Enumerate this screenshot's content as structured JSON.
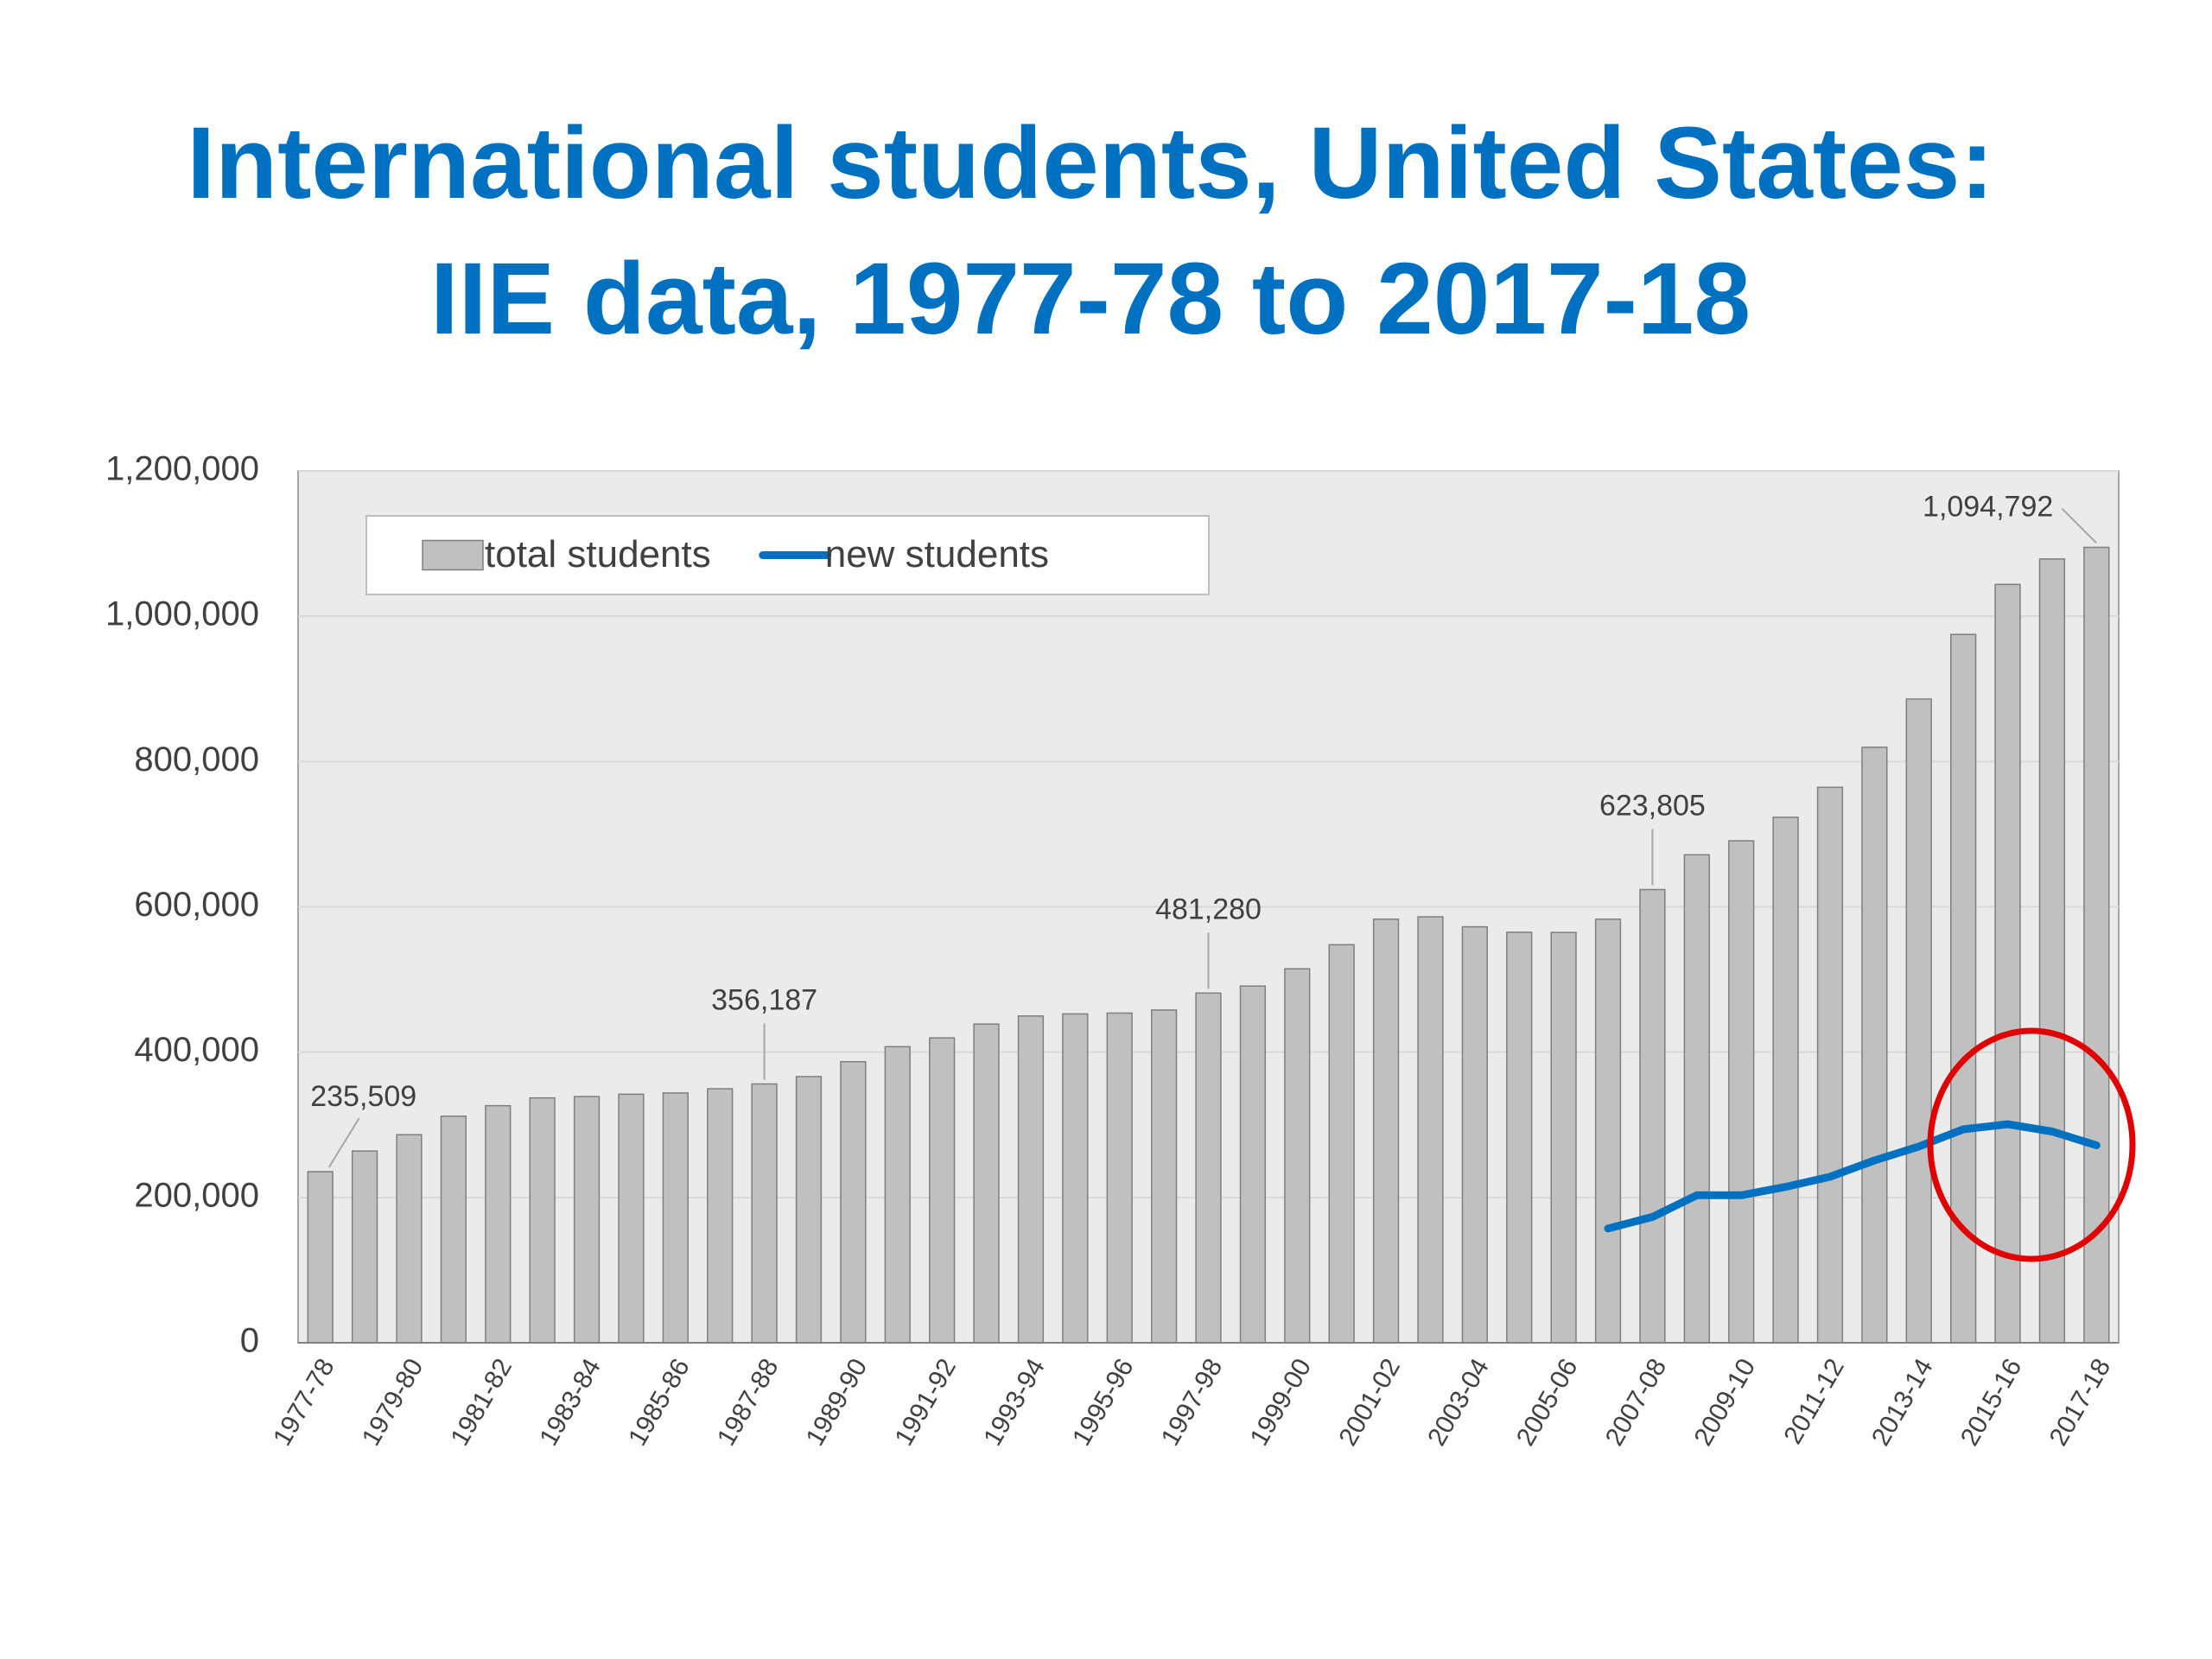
{
  "chart_data": {
    "type": "bar",
    "title": [
      "International students, United States:",
      "IIE data, 1977-78 to 2017-18"
    ],
    "categories": [
      "1977-78",
      null,
      "1979-80",
      null,
      "1981-82",
      null,
      "1983-84",
      null,
      "1985-86",
      null,
      "1987-88",
      null,
      "1989-90",
      null,
      "1991-92",
      null,
      "1993-94",
      null,
      "1995-96",
      null,
      "1997-98",
      null,
      "1999-00",
      null,
      "2001-02",
      null,
      "2003-04",
      null,
      "2005-06",
      null,
      "2007-08",
      null,
      "2009-10",
      null,
      "2011-12",
      null,
      "2013-14",
      null,
      "2015-16",
      null,
      "2017-18"
    ],
    "series": [
      {
        "name": "total students",
        "type": "bar",
        "color": "#c0c0c0",
        "values": [
          235509,
          263940,
          286340,
          311880,
          326300,
          336990,
          338890,
          342110,
          343780,
          349610,
          356187,
          366350,
          386850,
          407530,
          419590,
          438620,
          449750,
          452640,
          453790,
          457980,
          481280,
          490930,
          514720,
          547870,
          582990,
          586320,
          572510,
          565040,
          564770,
          582980,
          623805,
          671620,
          690920,
          723280,
          764500,
          819640,
          886050,
          974930,
          1043840,
          1078820,
          1094792
        ],
        "value_labels": [
          "235,509",
          null,
          null,
          null,
          null,
          null,
          null,
          null,
          null,
          null,
          "356,187",
          null,
          null,
          null,
          null,
          null,
          null,
          null,
          null,
          null,
          "481,280",
          null,
          null,
          null,
          null,
          null,
          null,
          null,
          null,
          null,
          "623,805",
          null,
          null,
          null,
          null,
          null,
          null,
          null,
          null,
          null,
          "1,094,792"
        ]
      },
      {
        "name": "new students",
        "type": "line",
        "color": "#0070c0",
        "values": [
          null,
          null,
          null,
          null,
          null,
          null,
          null,
          null,
          null,
          null,
          null,
          null,
          null,
          null,
          null,
          null,
          null,
          null,
          null,
          null,
          null,
          null,
          null,
          null,
          null,
          null,
          null,
          null,
          null,
          157180,
          173120,
          202970,
          202960,
          214490,
          228470,
          250920,
          270130,
          293770,
          300740,
          290840,
          271740
        ]
      }
    ],
    "ylim": [
      0,
      1200000
    ],
    "yticks": [
      0,
      {
        "value": 200000,
        "label": "200,000"
      },
      {
        "value": 400000,
        "label": "400,000"
      },
      {
        "value": 600000,
        "label": "600,000"
      },
      {
        "value": 800000,
        "label": "800,000"
      },
      {
        "value": 1000000,
        "label": "1,000,000"
      },
      {
        "value": 1200000,
        "label": "1,200,000"
      }
    ],
    "grid": true,
    "legend": "top-left"
  }
}
